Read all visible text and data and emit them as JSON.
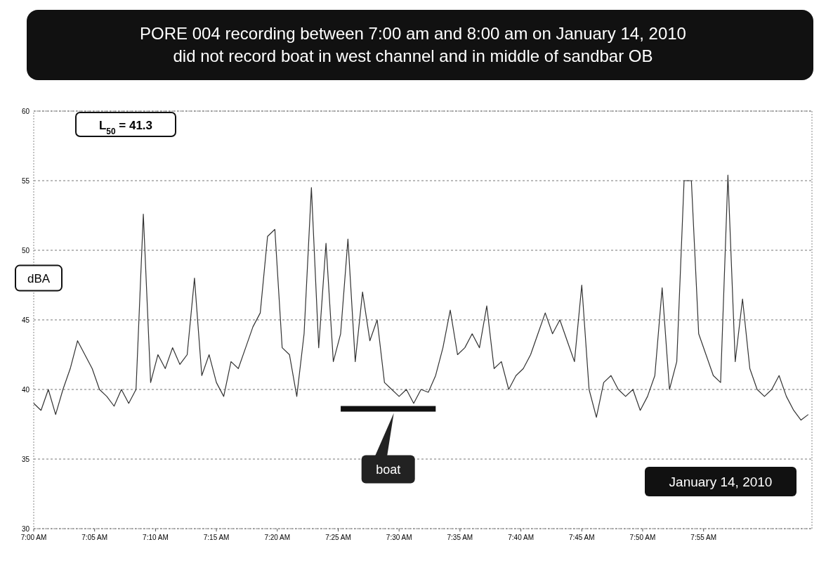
{
  "chart_data": {
    "type": "line",
    "title": "PORE 004 recording between 7:00 am and 8:00 am on January 14, 2010\ndid not record boat in west channel and in middle of sandbar OB",
    "ylabel": "dBA",
    "annotations": [
      "L$_{50}$ = 41.3",
      "January 14, 2010",
      "boat"
    ],
    "x": [
      7.0,
      7.01,
      7.02,
      7.03,
      7.04,
      7.05,
      7.06,
      7.07,
      7.08,
      7.09,
      7.1,
      7.11,
      7.12,
      7.13,
      7.14,
      7.15,
      7.16,
      7.17,
      7.18,
      7.19,
      7.2,
      7.21,
      7.22,
      7.23,
      7.24,
      7.25,
      7.26,
      7.27,
      7.28,
      7.29,
      7.3,
      7.31,
      7.32,
      7.33,
      7.34,
      7.35,
      7.36,
      7.37,
      7.38,
      7.39,
      7.4,
      7.41,
      7.42,
      7.43,
      7.44,
      7.45,
      7.46,
      7.47,
      7.48,
      7.49,
      7.5,
      7.51,
      7.52,
      7.53,
      7.54,
      7.55,
      7.56,
      7.57,
      7.58,
      7.59,
      7.6,
      7.61,
      7.62,
      7.63,
      7.64,
      7.65,
      7.66,
      7.67,
      7.68,
      7.69,
      7.7,
      7.71,
      7.72,
      7.73,
      7.74,
      7.75,
      7.76,
      7.77,
      7.78,
      7.79,
      7.8,
      7.81,
      7.82,
      7.83,
      7.84,
      7.85,
      7.86,
      7.87,
      7.88,
      7.89,
      7.9,
      7.91,
      7.92,
      7.93,
      7.94,
      7.95,
      7.96,
      7.97,
      7.98,
      7.99,
      8.0,
      8.01,
      8.02,
      8.03,
      8.04,
      8.05,
      8.06
    ],
    "series": [
      {
        "color": "#333333",
        "values": [
          39,
          38.5,
          40,
          38.2,
          40,
          41.5,
          43.5,
          42.5,
          41.5,
          40,
          39.5,
          38.8,
          40,
          39,
          40,
          52.6,
          40.5,
          42.5,
          41.5,
          43,
          41.8,
          42.5,
          48,
          41,
          42.5,
          40.5,
          39.5,
          42,
          41.5,
          43,
          44.5,
          45.5,
          51,
          51.5,
          43,
          42.5,
          39.5,
          44,
          54.5,
          43,
          50.5,
          42,
          44,
          50.8,
          42,
          47,
          43.5,
          45,
          40.5,
          40,
          39.5,
          40,
          39,
          40,
          39.8,
          41,
          43,
          45.7,
          42.5,
          43,
          44,
          43,
          46,
          41.5,
          42,
          40,
          41,
          41.5,
          42.5,
          44,
          45.5,
          44,
          45,
          43.5,
          42,
          47.5,
          40,
          38,
          40.5,
          41,
          40,
          39.5,
          40,
          38.5,
          39.5,
          41,
          47.3,
          40,
          42,
          55,
          55,
          44,
          42.5,
          41,
          40.5,
          55.4,
          42,
          46.5,
          41.5,
          40,
          39.5,
          40,
          41,
          39.5,
          38.5,
          37.8,
          38.2
        ]
      }
    ],
    "xlim": [
      7,
      8.065
    ],
    "xticks": [
      {
        "value": 7,
        "label": "7:00 AM"
      },
      {
        "value": 7.0833,
        "label": "7:05 AM"
      },
      {
        "value": 7.1667,
        "label": "7:10 AM"
      },
      {
        "value": 7.25,
        "label": "7:15 AM"
      },
      {
        "value": 7.3333,
        "label": "7:20 AM"
      },
      {
        "value": 7.4167,
        "label": "7:25 AM"
      },
      {
        "value": 7.5,
        "label": "7:30 AM"
      },
      {
        "value": 7.5833,
        "label": "7:35 AM"
      },
      {
        "value": 7.6667,
        "label": "7:40 AM"
      },
      {
        "value": 7.75,
        "label": "7:45 AM"
      },
      {
        "value": 7.8333,
        "label": "7:50 AM"
      },
      {
        "value": 7.9167,
        "label": "7:55 AM"
      }
    ],
    "ylim": [
      30,
      60
    ],
    "yticks": [
      30,
      35,
      40,
      45,
      50,
      55,
      60
    ],
    "grid": "y"
  }
}
